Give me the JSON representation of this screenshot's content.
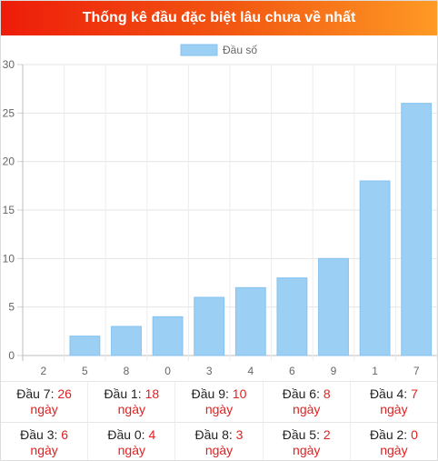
{
  "header": {
    "title": "Thống kê đầu đặc biệt lâu chưa về nhất"
  },
  "colors": {
    "bar": "#9ccff4",
    "bar_border": "#85c2ef",
    "accent_red": "#e02020",
    "header_start": "#ee1c0a",
    "header_end": "#ff9a24"
  },
  "chart_data": {
    "type": "bar",
    "categories": [
      "2",
      "5",
      "8",
      "0",
      "3",
      "4",
      "6",
      "9",
      "1",
      "7"
    ],
    "series": [
      {
        "name": "Đầu số",
        "values": [
          0,
          2,
          3,
          4,
          6,
          7,
          8,
          10,
          18,
          26
        ]
      }
    ],
    "ylim": [
      0,
      30
    ],
    "yticks": [
      0,
      5,
      10,
      15,
      20,
      25,
      30
    ],
    "grid": true,
    "legend": "top-center"
  },
  "stats": {
    "prefix": "Đầu",
    "unit": "ngày",
    "items": [
      {
        "digit": "7",
        "days": "26"
      },
      {
        "digit": "1",
        "days": "18"
      },
      {
        "digit": "9",
        "days": "10"
      },
      {
        "digit": "6",
        "days": "8"
      },
      {
        "digit": "4",
        "days": "7"
      },
      {
        "digit": "3",
        "days": "6"
      },
      {
        "digit": "0",
        "days": "4"
      },
      {
        "digit": "8",
        "days": "3"
      },
      {
        "digit": "5",
        "days": "2"
      },
      {
        "digit": "2",
        "days": "0"
      }
    ]
  }
}
